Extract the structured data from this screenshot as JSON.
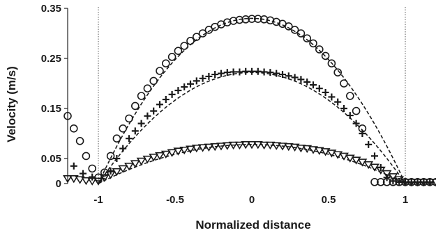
{
  "chart_data": {
    "type": "scatter",
    "title": "",
    "xlabel": "Normalized distance",
    "ylabel": "Velocity (m/s)",
    "xlim": [
      -1.2,
      1.2
    ],
    "ylim": [
      0,
      0.35
    ],
    "x_ticks": [
      -1,
      -0.5,
      0,
      0.5,
      1
    ],
    "x_tick_labels": [
      "-1",
      "-0.5",
      "0",
      "0.5",
      "1"
    ],
    "y_ticks": [
      0,
      0.05,
      0.15,
      0.25,
      0.35
    ],
    "y_tick_labels": [
      "0",
      "0.05",
      "0.15",
      "0.25",
      "0.35"
    ],
    "reference_lines_x": [
      -1,
      1
    ],
    "grid": false,
    "legend": "none",
    "colors": {
      "marker": "#1a1a1a",
      "fit_line": "#1a1a1a",
      "reference_line": "#555555"
    },
    "series": [
      {
        "marker": "circle",
        "points": [
          [
            -1.2,
            0.135
          ],
          [
            -1.16,
            0.11
          ],
          [
            -1.12,
            0.085
          ],
          [
            -1.08,
            0.055
          ],
          [
            -1.04,
            0.03
          ],
          [
            -1.0,
            0.012
          ],
          [
            -0.96,
            0.022
          ],
          [
            -0.92,
            0.055
          ],
          [
            -0.88,
            0.09
          ],
          [
            -0.84,
            0.11
          ],
          [
            -0.8,
            0.13
          ],
          [
            -0.76,
            0.155
          ],
          [
            -0.72,
            0.175
          ],
          [
            -0.68,
            0.19
          ],
          [
            -0.64,
            0.205
          ],
          [
            -0.6,
            0.225
          ],
          [
            -0.56,
            0.24
          ],
          [
            -0.52,
            0.253
          ],
          [
            -0.48,
            0.265
          ],
          [
            -0.44,
            0.275
          ],
          [
            -0.4,
            0.285
          ],
          [
            -0.36,
            0.293
          ],
          [
            -0.32,
            0.3
          ],
          [
            -0.28,
            0.307
          ],
          [
            -0.24,
            0.313
          ],
          [
            -0.2,
            0.318
          ],
          [
            -0.16,
            0.322
          ],
          [
            -0.12,
            0.325
          ],
          [
            -0.08,
            0.327
          ],
          [
            -0.04,
            0.328
          ],
          [
            0.0,
            0.329
          ],
          [
            0.04,
            0.329
          ],
          [
            0.08,
            0.328
          ],
          [
            0.12,
            0.326
          ],
          [
            0.16,
            0.323
          ],
          [
            0.2,
            0.319
          ],
          [
            0.24,
            0.314
          ],
          [
            0.28,
            0.307
          ],
          [
            0.32,
            0.3
          ],
          [
            0.36,
            0.29
          ],
          [
            0.4,
            0.28
          ],
          [
            0.44,
            0.268
          ],
          [
            0.48,
            0.255
          ],
          [
            0.52,
            0.24
          ],
          [
            0.56,
            0.222
          ],
          [
            0.6,
            0.2
          ],
          [
            0.64,
            0.175
          ],
          [
            0.68,
            0.145
          ],
          [
            0.72,
            0.11
          ],
          [
            0.8,
            0.003
          ],
          [
            0.84,
            0.003
          ],
          [
            0.88,
            0.003
          ],
          [
            0.92,
            0.003
          ],
          [
            0.96,
            0.003
          ],
          [
            1.0,
            0.003
          ],
          [
            1.04,
            0.003
          ],
          [
            1.08,
            0.003
          ],
          [
            1.12,
            0.003
          ],
          [
            1.16,
            0.003
          ],
          [
            1.2,
            0.003
          ]
        ]
      },
      {
        "marker": "plus",
        "points": [
          [
            -1.16,
            0.035
          ],
          [
            -1.1,
            0.02
          ],
          [
            -1.04,
            0.013
          ],
          [
            -0.98,
            0.01
          ],
          [
            -0.92,
            0.025
          ],
          [
            -0.88,
            0.05
          ],
          [
            -0.84,
            0.07
          ],
          [
            -0.8,
            0.09
          ],
          [
            -0.76,
            0.105
          ],
          [
            -0.72,
            0.12
          ],
          [
            -0.68,
            0.135
          ],
          [
            -0.64,
            0.145
          ],
          [
            -0.6,
            0.158
          ],
          [
            -0.56,
            0.168
          ],
          [
            -0.52,
            0.178
          ],
          [
            -0.48,
            0.186
          ],
          [
            -0.44,
            0.193
          ],
          [
            -0.4,
            0.199
          ],
          [
            -0.36,
            0.205
          ],
          [
            -0.32,
            0.21
          ],
          [
            -0.28,
            0.214
          ],
          [
            -0.24,
            0.218
          ],
          [
            -0.2,
            0.22
          ],
          [
            -0.16,
            0.222
          ],
          [
            -0.12,
            0.223
          ],
          [
            -0.08,
            0.223
          ],
          [
            -0.04,
            0.224
          ],
          [
            0.0,
            0.224
          ],
          [
            0.04,
            0.224
          ],
          [
            0.08,
            0.223
          ],
          [
            0.12,
            0.222
          ],
          [
            0.16,
            0.22
          ],
          [
            0.2,
            0.218
          ],
          [
            0.24,
            0.215
          ],
          [
            0.28,
            0.212
          ],
          [
            0.32,
            0.208
          ],
          [
            0.36,
            0.203
          ],
          [
            0.4,
            0.197
          ],
          [
            0.44,
            0.19
          ],
          [
            0.48,
            0.182
          ],
          [
            0.52,
            0.173
          ],
          [
            0.56,
            0.163
          ],
          [
            0.6,
            0.15
          ],
          [
            0.64,
            0.136
          ],
          [
            0.68,
            0.12
          ],
          [
            0.72,
            0.1
          ],
          [
            0.76,
            0.078
          ],
          [
            0.8,
            0.055
          ],
          [
            0.84,
            0.032
          ],
          [
            0.88,
            0.012
          ],
          [
            0.92,
            0.005
          ],
          [
            0.96,
            0.003
          ],
          [
            1.0,
            0.003
          ],
          [
            1.04,
            0.003
          ],
          [
            1.08,
            0.003
          ],
          [
            1.12,
            0.003
          ],
          [
            1.16,
            0.003
          ]
        ]
      },
      {
        "marker": "triangle-down",
        "points": [
          [
            -1.2,
            0.01
          ],
          [
            -1.16,
            0.01
          ],
          [
            -1.12,
            0.008
          ],
          [
            -1.08,
            0.006
          ],
          [
            -1.04,
            0.005
          ],
          [
            -1.0,
            0.005
          ],
          [
            -0.96,
            0.012
          ],
          [
            -0.92,
            0.018
          ],
          [
            -0.88,
            0.024
          ],
          [
            -0.84,
            0.03
          ],
          [
            -0.8,
            0.035
          ],
          [
            -0.76,
            0.04
          ],
          [
            -0.72,
            0.045
          ],
          [
            -0.68,
            0.049
          ],
          [
            -0.64,
            0.053
          ],
          [
            -0.6,
            0.056
          ],
          [
            -0.56,
            0.059
          ],
          [
            -0.52,
            0.062
          ],
          [
            -0.48,
            0.065
          ],
          [
            -0.44,
            0.067
          ],
          [
            -0.4,
            0.069
          ],
          [
            -0.36,
            0.071
          ],
          [
            -0.32,
            0.072
          ],
          [
            -0.28,
            0.073
          ],
          [
            -0.24,
            0.074
          ],
          [
            -0.2,
            0.075
          ],
          [
            -0.16,
            0.076
          ],
          [
            -0.12,
            0.077
          ],
          [
            -0.08,
            0.077
          ],
          [
            -0.04,
            0.078
          ],
          [
            0.0,
            0.078
          ],
          [
            0.04,
            0.078
          ],
          [
            0.08,
            0.077
          ],
          [
            0.12,
            0.077
          ],
          [
            0.16,
            0.076
          ],
          [
            0.2,
            0.075
          ],
          [
            0.24,
            0.074
          ],
          [
            0.28,
            0.073
          ],
          [
            0.32,
            0.071
          ],
          [
            0.36,
            0.07
          ],
          [
            0.4,
            0.068
          ],
          [
            0.44,
            0.066
          ],
          [
            0.48,
            0.064
          ],
          [
            0.52,
            0.061
          ],
          [
            0.56,
            0.058
          ],
          [
            0.6,
            0.055
          ],
          [
            0.64,
            0.051
          ],
          [
            0.68,
            0.047
          ],
          [
            0.72,
            0.043
          ],
          [
            0.76,
            0.038
          ],
          [
            0.8,
            0.033
          ],
          [
            0.84,
            0.027
          ],
          [
            0.88,
            0.02
          ],
          [
            0.92,
            0.014
          ],
          [
            0.96,
            0.008
          ],
          [
            1.0,
            0.003
          ],
          [
            1.04,
            0.003
          ],
          [
            1.08,
            0.003
          ],
          [
            1.12,
            0.003
          ],
          [
            1.16,
            0.003
          ],
          [
            1.2,
            0.003
          ]
        ]
      }
    ],
    "fit_curves": [
      {
        "style": "dashed",
        "peak": 0.33,
        "x_range": [
          -1,
          1
        ]
      },
      {
        "style": "dashed",
        "peak": 0.222,
        "x_range": [
          -1,
          1
        ]
      },
      {
        "style": "dashed",
        "peak": 0.078,
        "x_range": [
          -1,
          1
        ]
      }
    ]
  }
}
